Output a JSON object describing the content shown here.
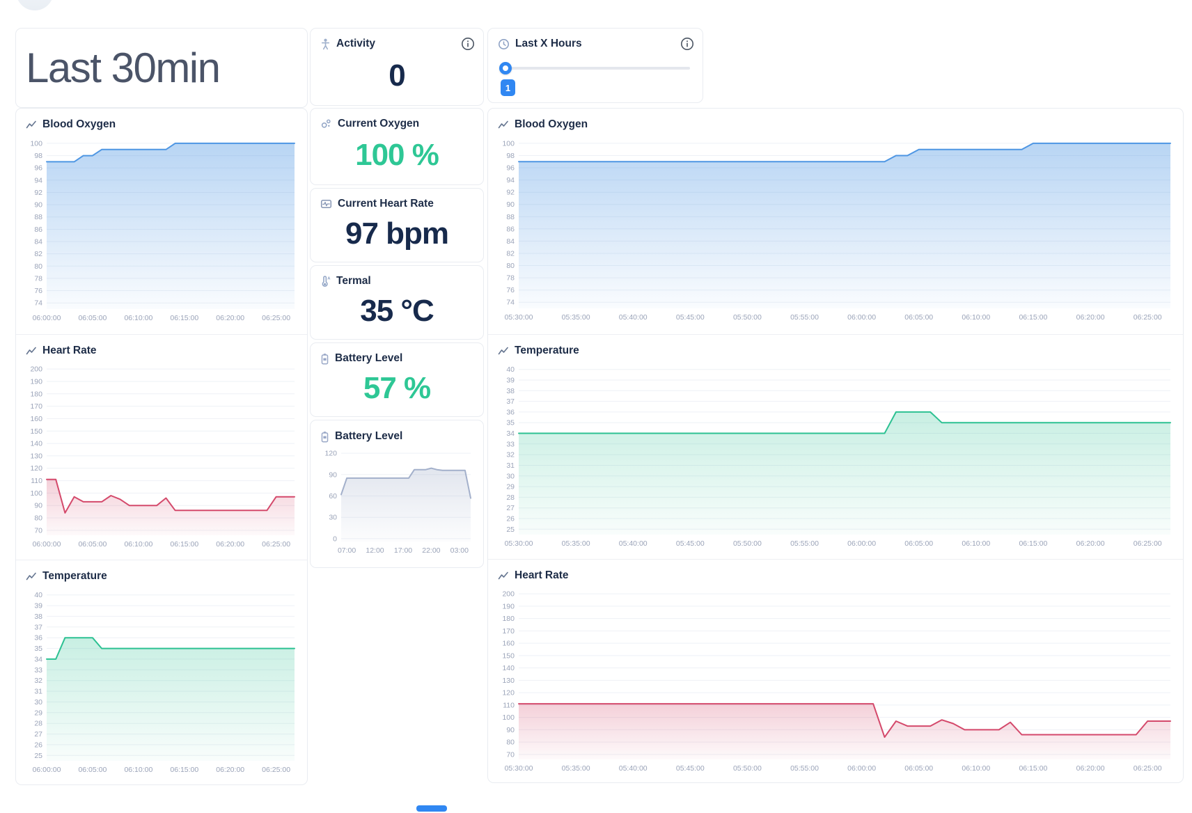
{
  "header": {
    "title": "Last 30min"
  },
  "cards": {
    "activity": {
      "label": "Activity",
      "value": "0"
    },
    "hours": {
      "label": "Last X Hours",
      "value": "1"
    }
  },
  "stats": {
    "oxygen": {
      "label": "Current Oxygen",
      "value": "100 %"
    },
    "heart_rate": {
      "label": "Current Heart Rate",
      "value": "97 bpm"
    },
    "thermal": {
      "label": "Termal",
      "value": "35 °C"
    },
    "battery": {
      "label": "Battery Level",
      "value": "57 %"
    }
  },
  "colors": {
    "accent_blue": "#3087f2",
    "value_green": "#2ec795",
    "value_navy": "#172a4c",
    "line_blue": "#4e96e3",
    "line_red": "#d4496b",
    "line_green": "#2cc192",
    "line_slate": "#a3b0cb"
  },
  "chart_data": [
    {
      "key": "blood-oxygen-30min",
      "type": "area",
      "title": "Blood Oxygen",
      "color": "#4e96e3",
      "fill_opacity": 0.4,
      "ymin": 73.0,
      "ymax": 100.9,
      "yticks": [
        100,
        98,
        96,
        94,
        92,
        90,
        88,
        86,
        84,
        82,
        80,
        78,
        76,
        74
      ],
      "x_start": "06:00:00",
      "x_step_minutes": 1,
      "x_tick_labels": [
        "06:00:00",
        "06:05:00",
        "06:10:00",
        "06:15:00",
        "06:20:00",
        "06:25:00"
      ],
      "x_tick_indices": [
        0,
        5,
        10,
        15,
        20,
        25
      ],
      "values": [
        97,
        97,
        97,
        97,
        98,
        98,
        99,
        99,
        99,
        99,
        99,
        99,
        99,
        99,
        100,
        100,
        100,
        100,
        100,
        100,
        100,
        100,
        100,
        100,
        100,
        100,
        100,
        100
      ]
    },
    {
      "key": "heart-rate-30min",
      "type": "area",
      "title": "Heart Rate",
      "color": "#d4496b",
      "fill_opacity": 0.26,
      "ymin": 66,
      "ymax": 204,
      "yticks": [
        200,
        190,
        180,
        170,
        160,
        150,
        140,
        130,
        120,
        110,
        100,
        90,
        80,
        70
      ],
      "x_start": "06:00:00",
      "x_step_minutes": 1,
      "x_tick_labels": [
        "06:00:00",
        "06:05:00",
        "06:10:00",
        "06:15:00",
        "06:20:00",
        "06:25:00"
      ],
      "x_tick_indices": [
        0,
        5,
        10,
        15,
        20,
        25
      ],
      "values": [
        111,
        111,
        84,
        97,
        93,
        93,
        93,
        98,
        95,
        90,
        90,
        90,
        90,
        96,
        86,
        86,
        86,
        86,
        86,
        86,
        86,
        86,
        86,
        86,
        86,
        97,
        97,
        97
      ]
    },
    {
      "key": "temperature-30min",
      "type": "area",
      "title": "Temperature",
      "color": "#2cc192",
      "fill_opacity": 0.26,
      "ymin": 24.5,
      "ymax": 40.5,
      "yticks": [
        40,
        39,
        38,
        37,
        36,
        35,
        34,
        33,
        32,
        31,
        30,
        29,
        28,
        27,
        26,
        25
      ],
      "x_start": "06:00:00",
      "x_step_minutes": 1,
      "x_tick_labels": [
        "06:00:00",
        "06:05:00",
        "06:10:00",
        "06:15:00",
        "06:20:00",
        "06:25:00"
      ],
      "x_tick_indices": [
        0,
        5,
        10,
        15,
        20,
        25
      ],
      "values": [
        34,
        34,
        36,
        36,
        36,
        36,
        35,
        35,
        35,
        35,
        35,
        35,
        35,
        35,
        35,
        35,
        35,
        35,
        35,
        35,
        35,
        35,
        35,
        35,
        35,
        35,
        35,
        35
      ]
    },
    {
      "key": "battery-level-24h",
      "type": "area",
      "title": "Battery Level",
      "color": "#a3b0cb",
      "fill_opacity": 0.32,
      "ymin": -4,
      "ymax": 125,
      "yticks": [
        120,
        90,
        60,
        30,
        0
      ],
      "x_start": "06:00",
      "x_step_minutes": 60,
      "x_tick_labels": [
        "07:00",
        "12:00",
        "17:00",
        "22:00",
        "03:00"
      ],
      "x_tick_indices": [
        1,
        6,
        11,
        16,
        21
      ],
      "values": [
        62,
        85,
        85,
        85,
        85,
        85,
        85,
        85,
        85,
        85,
        85,
        85,
        85,
        97,
        97,
        97,
        99,
        97,
        96,
        96,
        96,
        96,
        96,
        57
      ]
    },
    {
      "key": "blood-oxygen-1h",
      "type": "area",
      "title": "Blood Oxygen",
      "color": "#4e96e3",
      "fill_opacity": 0.4,
      "ymin": 73.0,
      "ymax": 100.9,
      "yticks": [
        100,
        98,
        96,
        94,
        92,
        90,
        88,
        86,
        84,
        82,
        80,
        78,
        76,
        74
      ],
      "x_start": "05:30:00",
      "x_step_minutes": 1,
      "x_tick_labels": [
        "05:30:00",
        "05:35:00",
        "05:40:00",
        "05:45:00",
        "05:50:00",
        "05:55:00",
        "06:00:00",
        "06:05:00",
        "06:10:00",
        "06:15:00",
        "06:20:00",
        "06:25:00"
      ],
      "x_tick_indices": [
        0,
        5,
        10,
        15,
        20,
        25,
        30,
        35,
        40,
        45,
        50,
        55
      ],
      "values": [
        97,
        97,
        97,
        97,
        97,
        97,
        97,
        97,
        97,
        97,
        97,
        97,
        97,
        97,
        97,
        97,
        97,
        97,
        97,
        97,
        97,
        97,
        97,
        97,
        97,
        97,
        97,
        97,
        97,
        97,
        97,
        97,
        97,
        98,
        98,
        99,
        99,
        99,
        99,
        99,
        99,
        99,
        99,
        99,
        99,
        100,
        100,
        100,
        100,
        100,
        100,
        100,
        100,
        100,
        100,
        100,
        100,
        100
      ]
    },
    {
      "key": "temperature-1h",
      "type": "area",
      "title": "Temperature",
      "color": "#2cc192",
      "fill_opacity": 0.26,
      "ymin": 24.5,
      "ymax": 40.5,
      "yticks": [
        40,
        39,
        38,
        37,
        36,
        35,
        34,
        33,
        32,
        31,
        30,
        29,
        28,
        27,
        26,
        25
      ],
      "x_start": "05:30:00",
      "x_step_minutes": 1,
      "x_tick_labels": [
        "05:30:00",
        "05:35:00",
        "05:40:00",
        "05:45:00",
        "05:50:00",
        "05:55:00",
        "06:00:00",
        "06:05:00",
        "06:10:00",
        "06:15:00",
        "06:20:00",
        "06:25:00"
      ],
      "x_tick_indices": [
        0,
        5,
        10,
        15,
        20,
        25,
        30,
        35,
        40,
        45,
        50,
        55
      ],
      "values": [
        34,
        34,
        34,
        34,
        34,
        34,
        34,
        34,
        34,
        34,
        34,
        34,
        34,
        34,
        34,
        34,
        34,
        34,
        34,
        34,
        34,
        34,
        34,
        34,
        34,
        34,
        34,
        34,
        34,
        34,
        34,
        34,
        34,
        36,
        36,
        36,
        36,
        35,
        35,
        35,
        35,
        35,
        35,
        35,
        35,
        35,
        35,
        35,
        35,
        35,
        35,
        35,
        35,
        35,
        35,
        35,
        35,
        35
      ]
    },
    {
      "key": "heart-rate-1h",
      "type": "area",
      "title": "Heart Rate",
      "color": "#d4496b",
      "fill_opacity": 0.26,
      "ymin": 66,
      "ymax": 204,
      "yticks": [
        200,
        190,
        180,
        170,
        160,
        150,
        140,
        130,
        120,
        110,
        100,
        90,
        80,
        70
      ],
      "x_start": "05:30:00",
      "x_step_minutes": 1,
      "x_tick_labels": [
        "05:30:00",
        "05:35:00",
        "05:40:00",
        "05:45:00",
        "05:50:00",
        "05:55:00",
        "06:00:00",
        "06:05:00",
        "06:10:00",
        "06:15:00",
        "06:20:00",
        "06:25:00"
      ],
      "x_tick_indices": [
        0,
        5,
        10,
        15,
        20,
        25,
        30,
        35,
        40,
        45,
        50,
        55
      ],
      "values": [
        111,
        111,
        111,
        111,
        111,
        111,
        111,
        111,
        111,
        111,
        111,
        111,
        111,
        111,
        111,
        111,
        111,
        111,
        111,
        111,
        111,
        111,
        111,
        111,
        111,
        111,
        111,
        111,
        111,
        111,
        111,
        111,
        84,
        97,
        93,
        93,
        93,
        98,
        95,
        90,
        90,
        90,
        90,
        96,
        86,
        86,
        86,
        86,
        86,
        86,
        86,
        86,
        86,
        86,
        86,
        97,
        97,
        97
      ]
    }
  ]
}
